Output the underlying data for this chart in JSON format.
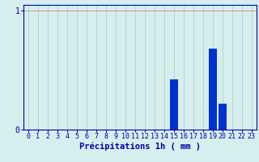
{
  "hours": [
    0,
    1,
    2,
    3,
    4,
    5,
    6,
    7,
    8,
    9,
    10,
    11,
    12,
    13,
    14,
    15,
    16,
    17,
    18,
    19,
    20,
    21,
    22,
    23
  ],
  "values": [
    0,
    0,
    0,
    0,
    0,
    0,
    0,
    0,
    0,
    0,
    0,
    0,
    0,
    0,
    0,
    0.42,
    0,
    0,
    0,
    0.68,
    0.22,
    0,
    0,
    0
  ],
  "bar_color": "#0033cc",
  "bg_color": "#d6eeee",
  "grid_color_x": "#b8d0d0",
  "grid_color_y": "#cc8888",
  "axis_color": "#0000aa",
  "xlabel": "Précipitations 1h ( mm )",
  "xlabel_fontsize": 7.5,
  "tick_fontsize": 6,
  "ylim": [
    0,
    1.05
  ],
  "yticks": [
    0,
    1
  ],
  "xlim": [
    -0.5,
    23.5
  ]
}
